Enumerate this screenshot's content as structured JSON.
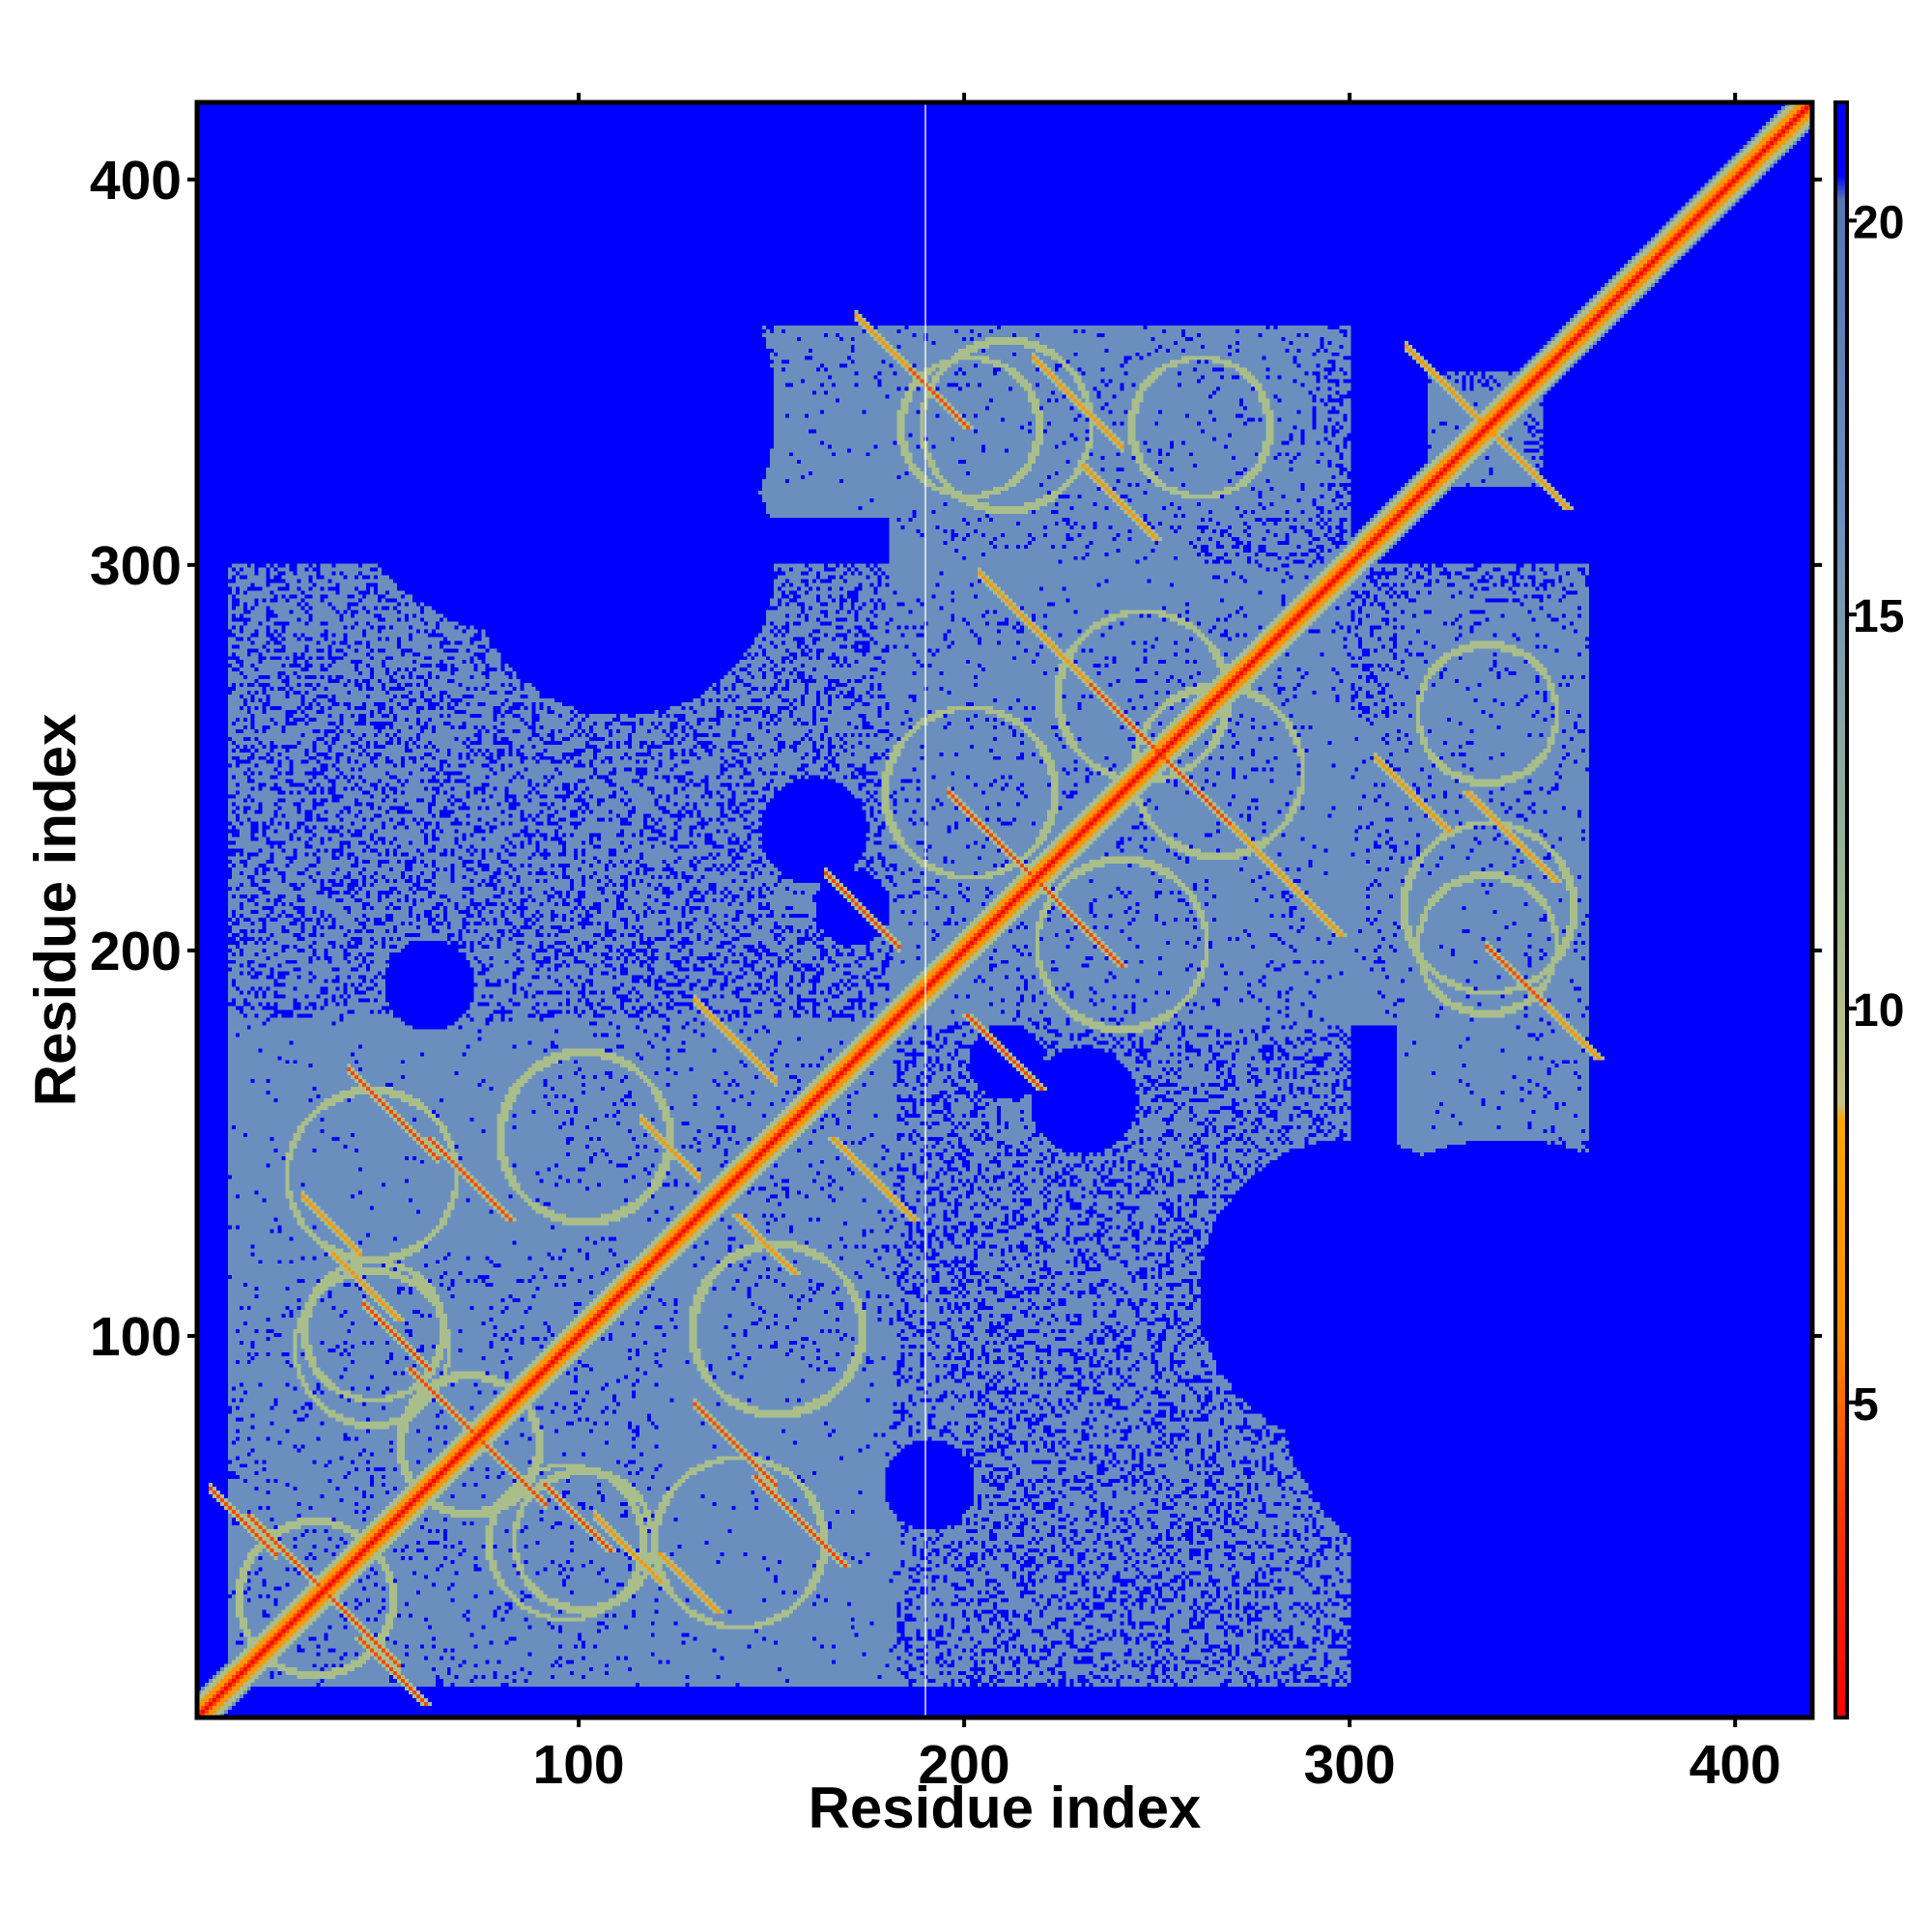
{
  "chart_data": {
    "type": "heatmap",
    "title": "",
    "xlabel": "Residue index",
    "ylabel": "Residue index",
    "n_residues": 420,
    "xlim": [
      1,
      420
    ],
    "ylim": [
      1,
      420
    ],
    "x_ticks": [
      100,
      200,
      300,
      400
    ],
    "y_ticks": [
      100,
      200,
      300,
      400
    ],
    "colorbar": {
      "range": [
        1,
        21.5
      ],
      "ticks": [
        5,
        10,
        15,
        20
      ],
      "colors": {
        "low": "#ff0000",
        "mid_low": "#ff8c00",
        "mid": "#9fb98e",
        "high": "#6a8fbe",
        "background": "#0000ff"
      }
    },
    "grid": false,
    "legend": "none",
    "diagonal_value": 2.5,
    "regions": [
      {
        "x": [
          8,
          180
        ],
        "y": [
          8,
          182
        ],
        "value": 16
      },
      {
        "x": [
          180,
          300
        ],
        "y": [
          90,
          312
        ],
        "value": 16
      },
      {
        "x": [
          120,
          300
        ],
        "y": [
          8,
          90
        ],
        "value": 16
      },
      {
        "x": [
          120,
          300
        ],
        "y": [
          312,
          362
        ],
        "value": 16
      },
      {
        "x": [
          312,
          362
        ],
        "y": [
          148,
          290
        ],
        "value": 16
      },
      {
        "x": [
          290,
          312
        ],
        "y": [
          180,
          260
        ],
        "value": 16
      },
      {
        "x": [
          320,
          345
        ],
        "y": [
          320,
          350
        ],
        "value": 16
      },
      {
        "x": [
          125,
          215
        ],
        "y": [
          312,
          345
        ],
        "value": 16
      }
    ],
    "holes": [
      {
        "x": 160,
        "y": 230,
        "r": 14
      },
      {
        "x": 210,
        "y": 170,
        "r": 10
      },
      {
        "x": 190,
        "y": 60,
        "r": 12
      },
      {
        "x": 300,
        "y": 110,
        "r": 40
      },
      {
        "x": 340,
        "y": 90,
        "r": 60
      }
    ],
    "contacts": [
      {
        "x": 13,
        "y": 52,
        "l": 20,
        "v": 5
      },
      {
        "x": 42,
        "y": 20,
        "l": 18,
        "v": 5
      },
      {
        "x": 55,
        "y": 90,
        "l": 22,
        "v": 5
      },
      {
        "x": 90,
        "y": 60,
        "l": 18,
        "v": 5
      },
      {
        "x": 35,
        "y": 120,
        "l": 18,
        "v": 6
      },
      {
        "x": 60,
        "y": 150,
        "l": 22,
        "v": 5
      },
      {
        "x": 120,
        "y": 42,
        "l": 16,
        "v": 6
      },
      {
        "x": 145,
        "y": 62,
        "l": 24,
        "v": 5
      },
      {
        "x": 140,
        "y": 130,
        "l": 16,
        "v": 6
      },
      {
        "x": 165,
        "y": 150,
        "l": 22,
        "v": 6
      },
      {
        "x": 200,
        "y": 182,
        "l": 20,
        "v": 5
      },
      {
        "x": 215,
        "y": 220,
        "l": 26,
        "v": 5
      },
      {
        "x": 232,
        "y": 268,
        "l": 30,
        "v": 5
      },
      {
        "x": 268,
        "y": 232,
        "l": 30,
        "v": 6
      },
      {
        "x": 330,
        "y": 240,
        "l": 24,
        "v": 6
      },
      {
        "x": 345,
        "y": 190,
        "l": 20,
        "v": 6
      },
      {
        "x": 185,
        "y": 350,
        "l": 16,
        "v": 5
      },
      {
        "x": 230,
        "y": 325,
        "l": 20,
        "v": 6
      },
      {
        "x": 325,
        "y": 345,
        "l": 10,
        "v": 6
      },
      {
        "x": 345,
        "y": 325,
        "l": 12,
        "v": 6
      }
    ],
    "rings": [
      {
        "x": 30,
        "y": 30,
        "r": 20
      },
      {
        "x": 70,
        "y": 70,
        "r": 18
      },
      {
        "x": 95,
        "y": 45,
        "r": 20
      },
      {
        "x": 45,
        "y": 100,
        "r": 18
      },
      {
        "x": 140,
        "y": 45,
        "r": 22
      },
      {
        "x": 150,
        "y": 100,
        "r": 22
      },
      {
        "x": 100,
        "y": 150,
        "r": 22
      },
      {
        "x": 200,
        "y": 240,
        "r": 22
      },
      {
        "x": 245,
        "y": 265,
        "r": 22
      },
      {
        "x": 335,
        "y": 210,
        "r": 22
      },
      {
        "x": 200,
        "y": 335,
        "r": 18
      },
      {
        "x": 260,
        "y": 335,
        "r": 18
      }
    ]
  }
}
